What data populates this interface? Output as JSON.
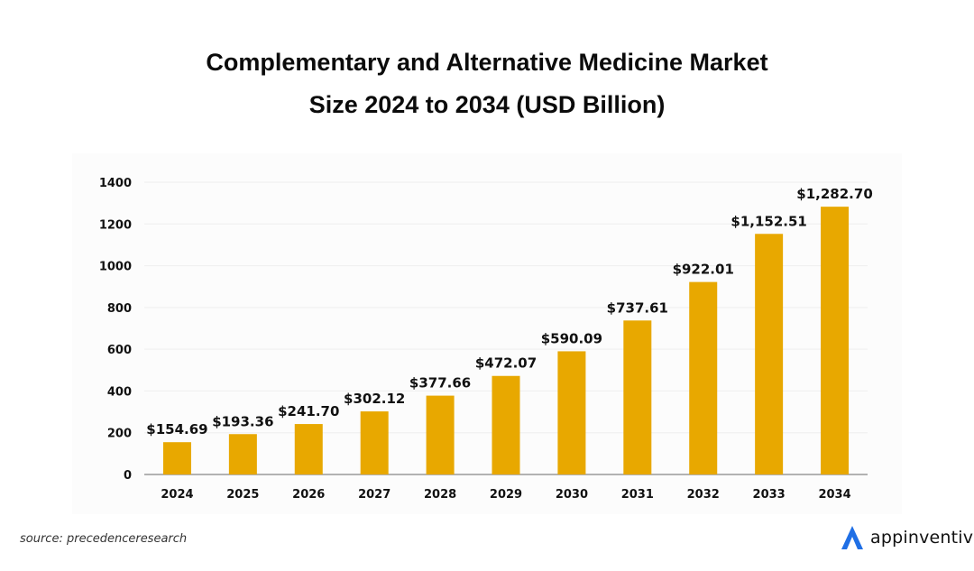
{
  "title_line1": "Complementary and Alternative Medicine Market",
  "title_line2": "Size 2024 to 2034 (USD Billion)",
  "source": "source: precedenceresearch",
  "brand": {
    "name": "appinventiv",
    "logo_color": "#1f6fe5",
    "icon": "a-logo-icon"
  },
  "colors": {
    "bar": "#e8a800",
    "axis": "#999999",
    "grid": "#eeeeee",
    "text": "#111111"
  },
  "chart_data": {
    "type": "bar",
    "title": "Complementary and Alternative Medicine Market Size 2024 to 2034 (USD Billion)",
    "xlabel": "",
    "ylabel": "",
    "categories": [
      "2024",
      "2025",
      "2026",
      "2027",
      "2028",
      "2029",
      "2030",
      "2031",
      "2032",
      "2033",
      "2034"
    ],
    "values": [
      154.69,
      193.36,
      241.7,
      302.12,
      377.66,
      472.07,
      590.09,
      737.61,
      922.01,
      1152.51,
      1282.7
    ],
    "data_labels": [
      "$154.69",
      "$193.36",
      "$241.70",
      "$302.12",
      "$377.66",
      "$472.07",
      "$590.09",
      "$737.61",
      "$922.01",
      "$1,152.51",
      "$1,282.70"
    ],
    "ylim": [
      0,
      1400
    ],
    "yticks": [
      0,
      200,
      400,
      600,
      800,
      1000,
      1200,
      1400
    ],
    "grid": true,
    "legend": "none"
  }
}
